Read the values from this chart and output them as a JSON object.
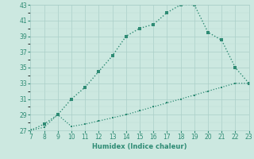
{
  "xlabel": "Humidex (Indice chaleur)",
  "x_upper": [
    7,
    8,
    9,
    10,
    11,
    12,
    13,
    14,
    15,
    16,
    17,
    18,
    19,
    20,
    21,
    22,
    23
  ],
  "y_upper": [
    27,
    27.8,
    29,
    31,
    32.5,
    34.5,
    36.5,
    39,
    40,
    40.5,
    42,
    43,
    43,
    39.5,
    38.5,
    35,
    33
  ],
  "x_lower": [
    7,
    8,
    9,
    10,
    11,
    12,
    13,
    14,
    15,
    16,
    17,
    18,
    19,
    20,
    21,
    22,
    23
  ],
  "y_lower": [
    27,
    27.4,
    29,
    27.5,
    27.8,
    28.2,
    28.6,
    29.0,
    29.5,
    30.0,
    30.5,
    31.0,
    31.5,
    32.0,
    32.5,
    33.0,
    33.0
  ],
  "line_color": "#2e8b74",
  "bg_color": "#cce8e0",
  "grid_major_color": "#aacfc8",
  "grid_minor_color": "#bbddd6",
  "xlim": [
    7,
    23
  ],
  "ylim": [
    27,
    43
  ],
  "yticks": [
    27,
    29,
    31,
    33,
    35,
    37,
    39,
    41,
    43
  ],
  "xticks": [
    7,
    8,
    9,
    10,
    11,
    12,
    13,
    14,
    15,
    16,
    17,
    18,
    19,
    20,
    21,
    22,
    23
  ],
  "tick_fontsize": 5.5,
  "xlabel_fontsize": 6.0
}
